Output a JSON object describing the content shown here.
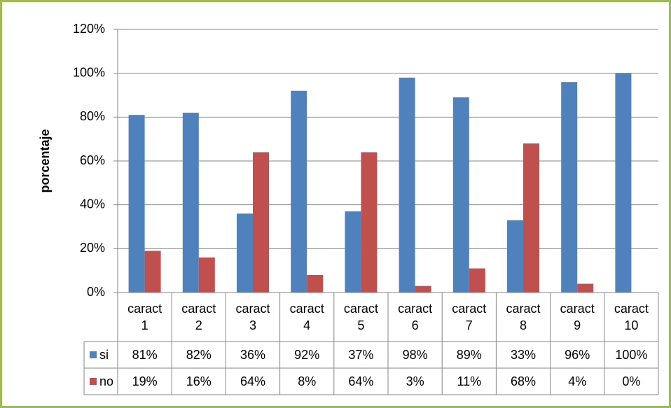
{
  "chart_data": {
    "type": "bar",
    "ylabel": "porcentaje",
    "categories": [
      "caract 1",
      "caract 2",
      "caract 3",
      "caract 4",
      "caract 5",
      "caract 6",
      "caract 7",
      "caract 8",
      "caract 9",
      "caract 10"
    ],
    "series": [
      {
        "name": "si",
        "color": "#4f81bd",
        "values": [
          81,
          82,
          36,
          92,
          37,
          98,
          89,
          33,
          96,
          100
        ],
        "value_labels": [
          "81%",
          "82%",
          "36%",
          "92%",
          "37%",
          "98%",
          "89%",
          "33%",
          "96%",
          "100%"
        ]
      },
      {
        "name": "no",
        "color": "#c0504d",
        "values": [
          19,
          16,
          64,
          8,
          64,
          3,
          11,
          68,
          4,
          0
        ],
        "value_labels": [
          "19%",
          "16%",
          "64%",
          "8%",
          "64%",
          "3%",
          "11%",
          "68%",
          "4%",
          "0%"
        ]
      }
    ],
    "ylim": [
      0,
      120
    ],
    "yticks": [
      {
        "value": 0,
        "label": "0%"
      },
      {
        "value": 20,
        "label": "20%"
      },
      {
        "value": 40,
        "label": "40%"
      },
      {
        "value": 60,
        "label": "60%"
      },
      {
        "value": 80,
        "label": "80%"
      },
      {
        "value": 100,
        "label": "100%"
      },
      {
        "value": 120,
        "label": "120%"
      }
    ],
    "grid": true,
    "data_table": true
  }
}
